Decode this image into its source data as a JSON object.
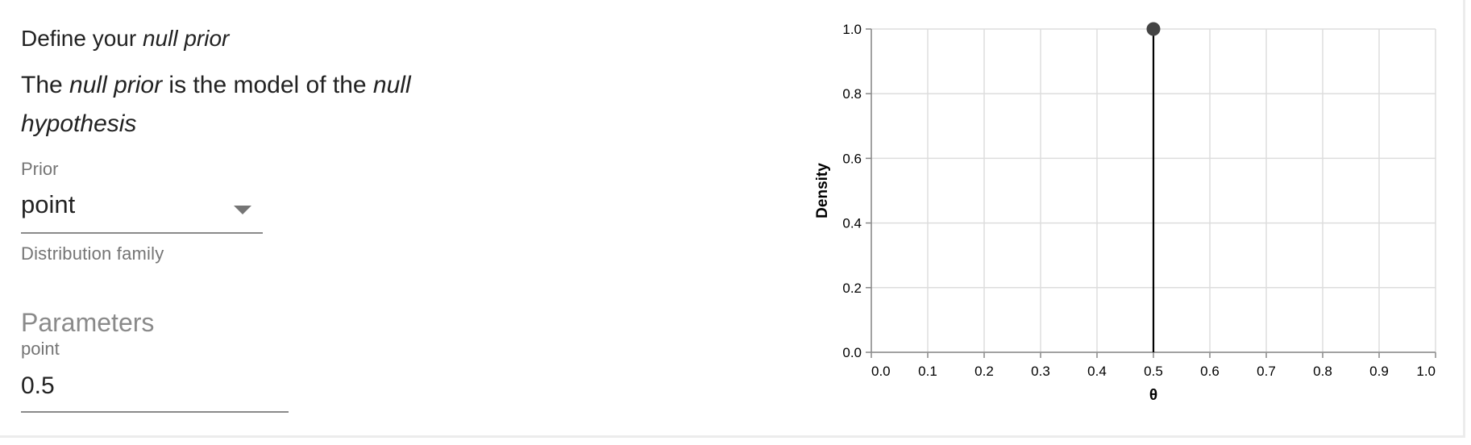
{
  "panel": {
    "title_prefix": "Define your ",
    "title_emphasis": "null prior",
    "desc_part1": "The ",
    "desc_emph1": "null prior",
    "desc_part2": " is the model of the ",
    "desc_emph2": "null hypothesis"
  },
  "prior_select": {
    "label": "Prior",
    "value": "point",
    "helper": "Distribution family"
  },
  "parameters": {
    "heading": "Parameters",
    "point_label": "point",
    "point_value": "0.5"
  },
  "colors": {
    "gridline": "#dddddd",
    "axis": "#888888",
    "mark": "#000000",
    "point": "#444444"
  },
  "chart_data": {
    "type": "line",
    "xlabel": "θ",
    "ylabel": "Density",
    "xlim": [
      0,
      1
    ],
    "ylim": [
      0,
      1
    ],
    "x_ticks": [
      "0.0",
      "0.1",
      "0.2",
      "0.3",
      "0.4",
      "0.5",
      "0.6",
      "0.7",
      "0.8",
      "0.9",
      "1.0"
    ],
    "y_ticks": [
      "0.0",
      "0.2",
      "0.4",
      "0.6",
      "0.8",
      "1.0"
    ],
    "grid": true,
    "series": [
      {
        "points": [
          {
            "x": 0.5,
            "y": 0
          },
          {
            "x": 0.5,
            "y": 1.0
          }
        ]
      }
    ],
    "point_mass": {
      "x": 0.5,
      "y": 1.0
    }
  }
}
